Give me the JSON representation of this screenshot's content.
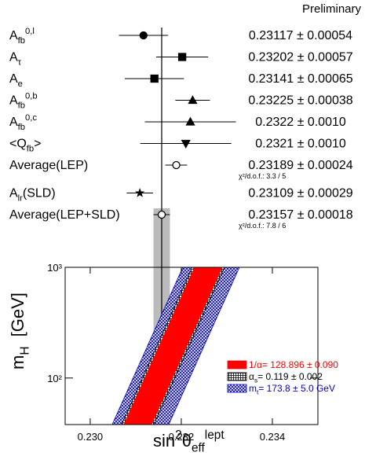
{
  "chart_data": [
    {
      "type": "forest",
      "title": "Preliminary",
      "categories": [
        [
          {
            "text": "A"
          },
          {
            "text": "fb",
            "shift": "sub"
          },
          {
            "text": "0,l",
            "shift": "sup"
          }
        ],
        [
          {
            "text": "A"
          },
          {
            "text": "τ",
            "shift": "sub"
          }
        ],
        [
          {
            "text": "A"
          },
          {
            "text": "e",
            "shift": "sub"
          }
        ],
        [
          {
            "text": "A"
          },
          {
            "text": "fb",
            "shift": "sub"
          },
          {
            "text": "0,b",
            "shift": "sup"
          }
        ],
        [
          {
            "text": "A"
          },
          {
            "text": "fb",
            "shift": "sub"
          },
          {
            "text": "0,c",
            "shift": "sup"
          }
        ],
        [
          {
            "text": "<Q"
          },
          {
            "text": "fb",
            "shift": "sub"
          },
          {
            "text": ">"
          }
        ],
        [
          {
            "text": "Average(LEP)"
          }
        ],
        [
          {
            "text": "A"
          },
          {
            "text": "lr",
            "shift": "sub"
          },
          {
            "text": "(SLD)"
          }
        ],
        [
          {
            "text": "Average(LEP+SLD)"
          }
        ]
      ],
      "values": [
        0.23117,
        0.23202,
        0.23141,
        0.23225,
        0.2322,
        0.2321,
        0.23189,
        0.23109,
        0.23157
      ],
      "errors": [
        0.00054,
        0.00057,
        0.00065,
        0.00038,
        0.001,
        0.001,
        0.00024,
        0.00029,
        0.00018
      ],
      "value_labels": [
        "0.23117 ± 0.00054",
        "0.23202 ± 0.00057",
        "0.23141 ± 0.00065",
        "0.23225 ± 0.00038",
        "0.2322 ± 0.0010",
        "0.2321 ± 0.0010",
        "0.23189 ± 0.00024",
        "0.23109 ± 0.00029",
        "0.23157 ± 0.00018"
      ],
      "annotations": [
        null,
        null,
        null,
        null,
        null,
        null,
        "χ²/d.o.f.: 3.3 / 5",
        null,
        "χ²/d.o.f.: 7.8 / 6"
      ],
      "markers": [
        "filled-circle",
        "filled-square",
        "filled-square",
        "filled-triangle-up",
        "filled-triangle-up",
        "filled-triangle-down",
        "open-circle",
        "star",
        "open-circle"
      ],
      "xlim": [
        0.22945,
        0.235
      ],
      "reference": 8
    },
    {
      "type": "band",
      "x_label": [
        {
          "text": "sin"
        },
        {
          "text": "2",
          "shift": "sup"
        },
        {
          "text": "θ"
        },
        {
          "text": "eff",
          "shift": "sub"
        },
        {
          "text": "lept",
          "shift": "sup"
        }
      ],
      "y_label": [
        {
          "text": "m"
        },
        {
          "text": "H",
          "shift": "sub"
        },
        {
          "text": "  [GeV]"
        }
      ],
      "xlim": [
        0.22945,
        0.235
      ],
      "xticks": [
        {
          "value": 0.23,
          "label": "0.230"
        },
        {
          "value": 0.232,
          "label": "0.232"
        },
        {
          "value": 0.234,
          "label": "0.234"
        }
      ],
      "ylim": [
        38,
        1000
      ],
      "yticks": [
        {
          "value": 100,
          "label": "10²"
        },
        {
          "value": 1000,
          "label": "10³"
        }
      ],
      "log_y": true,
      "legend": "lower right",
      "series": [
        {
          "name": [
            {
              "text": "1/α= 128.896 ± 0.090"
            }
          ],
          "color": "#ff0000",
          "fill": "solid",
          "mH": [
            38,
            1000
          ],
          "low": [
            0.230741,
            0.232293
          ],
          "high": [
            0.231345,
            0.232897
          ]
        },
        {
          "name": [
            {
              "text": "α"
            },
            {
              "text": "s",
              "shift": "sub"
            },
            {
              "text": "= 0.119 ± 0.002"
            }
          ],
          "color": "#000000",
          "fill": "grid-hatch",
          "mH": [
            38,
            1000
          ],
          "low": [
            0.23069,
            0.232241
          ],
          "high": [
            0.231397,
            0.232948
          ]
        },
        {
          "name": [
            {
              "text": "m"
            },
            {
              "text": "t",
              "shift": "sub"
            },
            {
              "text": "= 173.8 ± 5.0 GeV"
            }
          ],
          "color": "#0000cc",
          "fill": "cross-hatch",
          "mH": [
            38,
            1000
          ],
          "low": [
            0.230483,
            0.232034
          ],
          "high": [
            0.231724,
            0.233276
          ]
        }
      ]
    }
  ]
}
